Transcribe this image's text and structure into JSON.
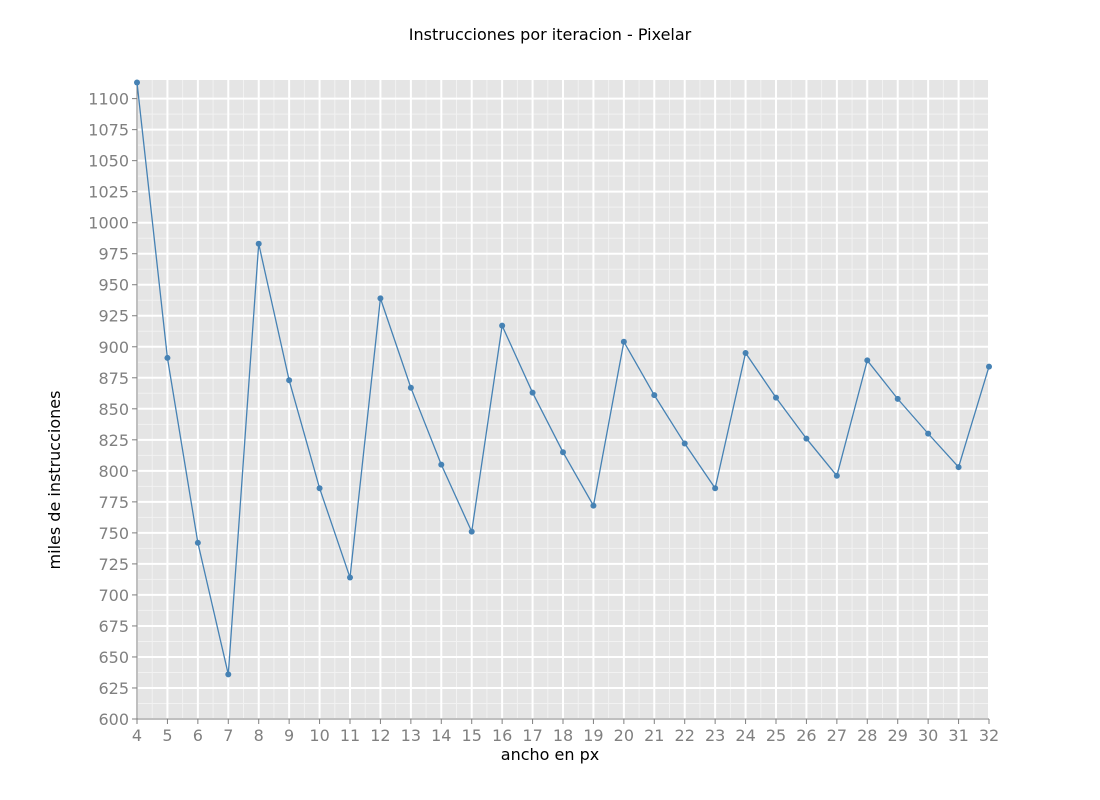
{
  "chart_data": {
    "type": "line",
    "title": "Instrucciones por iteracion - Pixelar",
    "xlabel": "ancho en px",
    "ylabel": "miles de instrucciones",
    "xlim": [
      4,
      32
    ],
    "ylim": [
      600,
      1115
    ],
    "x_ticks": [
      4,
      5,
      6,
      7,
      8,
      9,
      10,
      11,
      12,
      13,
      14,
      15,
      16,
      17,
      18,
      19,
      20,
      21,
      22,
      23,
      24,
      25,
      26,
      27,
      28,
      29,
      30,
      31,
      32
    ],
    "y_ticks": [
      600,
      625,
      650,
      675,
      700,
      725,
      750,
      775,
      800,
      825,
      850,
      875,
      900,
      925,
      950,
      975,
      1000,
      1025,
      1050,
      1075,
      1100
    ],
    "grid": true,
    "series": [
      {
        "color": "#4682b4",
        "x": [
          4,
          5,
          6,
          7,
          8,
          9,
          10,
          11,
          12,
          13,
          14,
          15,
          16,
          17,
          18,
          19,
          20,
          21,
          22,
          23,
          24,
          25,
          26,
          27,
          28,
          29,
          30,
          31,
          32
        ],
        "y": [
          1113,
          891,
          742,
          636,
          983,
          873,
          786,
          714,
          939,
          867,
          805,
          751,
          917,
          863,
          815,
          772,
          904,
          861,
          822,
          786,
          895,
          859,
          826,
          796,
          889,
          858,
          830,
          803,
          884
        ]
      }
    ]
  }
}
